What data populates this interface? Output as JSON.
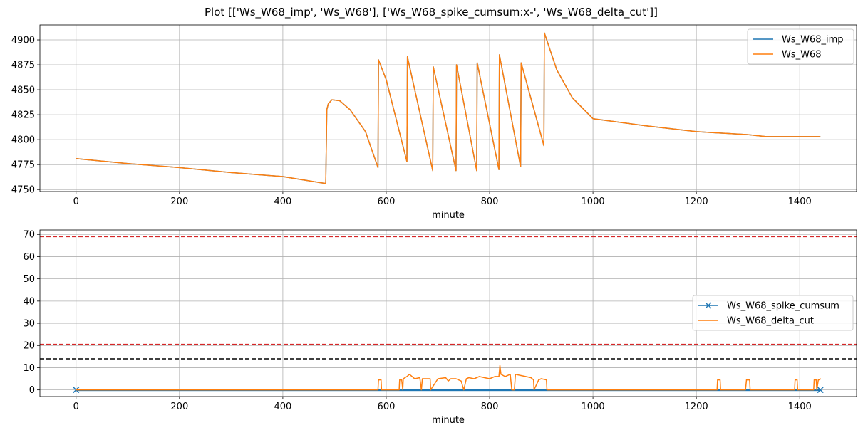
{
  "figure_title": "Plot [['Ws_W68_imp', 'Ws_W68'], ['Ws_W68_spike_cumsum:x-', 'Ws_W68_delta_cut']]",
  "chart_data": [
    {
      "type": "line",
      "xlabel": "minute",
      "ylabel": "",
      "xlim": [
        -70,
        1510
      ],
      "ylim": [
        4748,
        4915
      ],
      "xticks": [
        0,
        200,
        400,
        600,
        800,
        1000,
        1200,
        1400
      ],
      "yticks": [
        4750,
        4775,
        4800,
        4825,
        4850,
        4875,
        4900
      ],
      "grid": true,
      "legend": "top-right",
      "series": [
        {
          "name": "Ws_W68_imp",
          "color": "#1f77b4",
          "x": [
            0,
            100,
            200,
            300,
            400,
            483,
            485,
            488,
            495,
            510,
            530,
            560,
            584,
            585,
            600,
            640,
            641,
            690,
            691,
            735,
            736,
            775,
            776,
            818,
            819,
            860,
            861,
            905,
            906,
            930,
            960,
            1000,
            1100,
            1200,
            1300,
            1335,
            1400,
            1440
          ],
          "y": [
            4781,
            4776,
            4772,
            4767,
            4763,
            4756,
            4830,
            4836,
            4840,
            4839,
            4830,
            4808,
            4772,
            4880,
            4860,
            4778,
            4883,
            4769,
            4873,
            4769,
            4875,
            4769,
            4877,
            4770,
            4885,
            4773,
            4877,
            4794,
            4907,
            4870,
            4842,
            4821,
            4814,
            4808,
            4805,
            4803,
            4803,
            4803
          ]
        },
        {
          "name": "Ws_W68",
          "color": "#ff7f0e",
          "x": [
            0,
            100,
            200,
            300,
            400,
            483,
            485,
            488,
            495,
            510,
            530,
            560,
            584,
            585,
            600,
            640,
            641,
            690,
            691,
            735,
            736,
            775,
            776,
            818,
            819,
            860,
            861,
            905,
            906,
            930,
            960,
            1000,
            1100,
            1200,
            1300,
            1335,
            1400,
            1440
          ],
          "y": [
            4781,
            4776,
            4772,
            4767,
            4763,
            4756,
            4830,
            4836,
            4840,
            4839,
            4830,
            4808,
            4772,
            4880,
            4860,
            4778,
            4883,
            4769,
            4873,
            4769,
            4875,
            4769,
            4877,
            4770,
            4885,
            4773,
            4877,
            4794,
            4907,
            4870,
            4842,
            4821,
            4814,
            4808,
            4805,
            4803,
            4803,
            4803
          ]
        }
      ]
    },
    {
      "type": "line",
      "xlabel": "minute",
      "ylabel": "",
      "xlim": [
        -70,
        1510
      ],
      "ylim": [
        -3,
        72
      ],
      "xticks": [
        0,
        200,
        400,
        600,
        800,
        1000,
        1200,
        1400
      ],
      "yticks": [
        0,
        10,
        20,
        30,
        40,
        50,
        60,
        70
      ],
      "grid": true,
      "legend": "center-right",
      "hlines": [
        {
          "y": 69,
          "color": "#d62728"
        },
        {
          "y": 20.5,
          "color": "#d62728"
        },
        {
          "y": 14,
          "color": "#000000"
        }
      ],
      "series": [
        {
          "name": "Ws_W68_spike_cumsum",
          "color": "#1f77b4",
          "marker": "x",
          "x_range": [
            0,
            1440
          ],
          "y_band": [
            -0.5,
            0.5
          ]
        },
        {
          "name": "Ws_W68_delta_cut",
          "color": "#ff7f0e",
          "x": [
            0,
            582,
            584,
            585,
            590,
            591,
            625,
            626,
            630,
            632,
            633,
            640,
            645,
            655,
            665,
            668,
            670,
            685,
            686,
            700,
            715,
            720,
            725,
            735,
            745,
            750,
            755,
            760,
            770,
            780,
            790,
            800,
            810,
            818,
            820,
            822,
            830,
            840,
            843,
            848,
            850,
            860,
            870,
            880,
            885,
            886,
            895,
            900,
            910,
            911,
            1240,
            1241,
            1246,
            1247,
            1295,
            1297,
            1303,
            1304,
            1390,
            1391,
            1395,
            1396,
            1427,
            1428,
            1432,
            1433,
            1436,
            1437,
            1441
          ],
          "y": [
            0,
            0,
            0,
            4.5,
            4.5,
            0,
            0,
            4.5,
            4.5,
            0,
            5,
            6,
            7,
            5,
            5.5,
            0,
            5,
            5,
            0,
            5,
            5.5,
            4,
            5,
            5,
            4,
            0,
            5,
            5.5,
            5,
            6,
            5.5,
            5,
            6,
            6,
            11,
            7,
            6,
            7,
            0,
            0,
            7,
            6.5,
            6,
            5.5,
            4.5,
            0,
            4.5,
            5,
            4.5,
            0,
            0,
            4.5,
            4.5,
            0,
            0,
            4.5,
            4.5,
            0,
            0,
            4.5,
            4.5,
            0,
            0,
            4.5,
            4.5,
            0,
            4.5,
            4.5,
            5
          ]
        }
      ]
    }
  ]
}
